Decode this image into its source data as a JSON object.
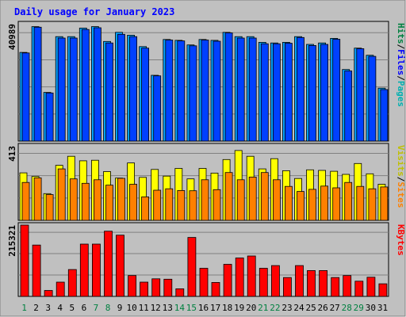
{
  "title": "Daily usage for January 2023",
  "colors": {
    "background": "#ffffff",
    "frame": "#c0c0c0",
    "plot": "#c0c0c0",
    "gridline": "#808080",
    "title": "#0000ff",
    "hits": "#00a0ff",
    "files": "#0040ff",
    "pages": "#00e0e0",
    "sites": "#ff8000",
    "visits": "#ffff00",
    "kbytes": "#ff0000",
    "weekday_label": "#000000",
    "weekend_label": "#008040"
  },
  "panels": {
    "top": {
      "max_label": "40989",
      "side_labels": [
        {
          "text": "Hits",
          "color": "#008040"
        },
        {
          "text": "/",
          "color": "#000000"
        },
        {
          "text": "Files",
          "color": "#0000ff"
        },
        {
          "text": "/",
          "color": "#000000"
        },
        {
          "text": "Pages",
          "color": "#00b0b0"
        }
      ]
    },
    "middle": {
      "max_label": "413",
      "side_labels": [
        {
          "text": "Visits",
          "color": "#c0c000"
        },
        {
          "text": "/",
          "color": "#000000"
        },
        {
          "text": "Sites",
          "color": "#ff8000"
        }
      ]
    },
    "bottom": {
      "max_label": "215321",
      "side_labels": [
        {
          "text": "KBytes",
          "color": "#ff0000"
        }
      ]
    }
  },
  "chart_data": {
    "type": "bar",
    "title": "Daily usage for January 2023",
    "categories": [
      "1",
      "2",
      "3",
      "4",
      "5",
      "6",
      "7",
      "8",
      "9",
      "10",
      "11",
      "12",
      "13",
      "14",
      "15",
      "16",
      "17",
      "18",
      "19",
      "20",
      "21",
      "22",
      "23",
      "24",
      "25",
      "26",
      "27",
      "28",
      "29",
      "30",
      "31"
    ],
    "weekend_days": [
      "1",
      "7",
      "8",
      "14",
      "15",
      "21",
      "22",
      "28",
      "29"
    ],
    "grid": true,
    "panels": [
      {
        "id": "top",
        "ylim": [
          0,
          40989
        ],
        "series": [
          {
            "name": "Hits",
            "values": [
              31000,
              40000,
              17000,
              36500,
              36500,
              39500,
              40000,
              34800,
              38000,
              37000,
              33000,
              23000,
              35500,
              35200,
              33600,
              35500,
              35200,
              38000,
              36500,
              36500,
              34500,
              34300,
              34500,
              36500,
              33800,
              34300,
              35900,
              25000,
              32500,
              30000,
              18500
            ]
          },
          {
            "name": "Files",
            "values": [
              30800,
              39800,
              16800,
              36000,
              36000,
              39000,
              39600,
              34300,
              37300,
              36500,
              32500,
              22800,
              35300,
              35000,
              33300,
              35300,
              34900,
              37800,
              36000,
              36000,
              34000,
              34000,
              34200,
              36200,
              33400,
              33800,
              35600,
              24500,
              32300,
              29600,
              18000
            ]
          }
        ]
      },
      {
        "id": "middle",
        "ylim": [
          0,
          413
        ],
        "series": [
          {
            "name": "Visits",
            "values": [
              263,
              243,
              148,
              305,
              355,
              330,
              333,
              270,
              234,
              318,
              238,
              282,
              245,
              288,
              230,
              288,
              262,
              337,
              387,
              355,
              285,
              342,
              275,
              232,
              280,
              277,
              272,
              255,
              315,
              258,
              200
            ]
          },
          {
            "name": "Sites",
            "values": [
              210,
              235,
              143,
              285,
              230,
              205,
              225,
              195,
              233,
              200,
              130,
              167,
              175,
              165,
              164,
              225,
              170,
              265,
              225,
              240,
              265,
              225,
              188,
              160,
              172,
              190,
              180,
              210,
              188,
              175,
              185
            ]
          }
        ]
      },
      {
        "id": "bottom",
        "ylim": [
          0,
          215321
        ],
        "series": [
          {
            "name": "KBytes",
            "values": [
              215321,
              155000,
              18000,
              43000,
              81000,
              158000,
              158000,
              197000,
              185000,
              63000,
              43000,
              53000,
              52000,
              23000,
              178000,
              85000,
              42000,
              97000,
              116000,
              122000,
              85000,
              93000,
              57000,
              93000,
              78000,
              78000,
              57000,
              63000,
              46000,
              58000,
              38000
            ]
          }
        ]
      }
    ]
  }
}
